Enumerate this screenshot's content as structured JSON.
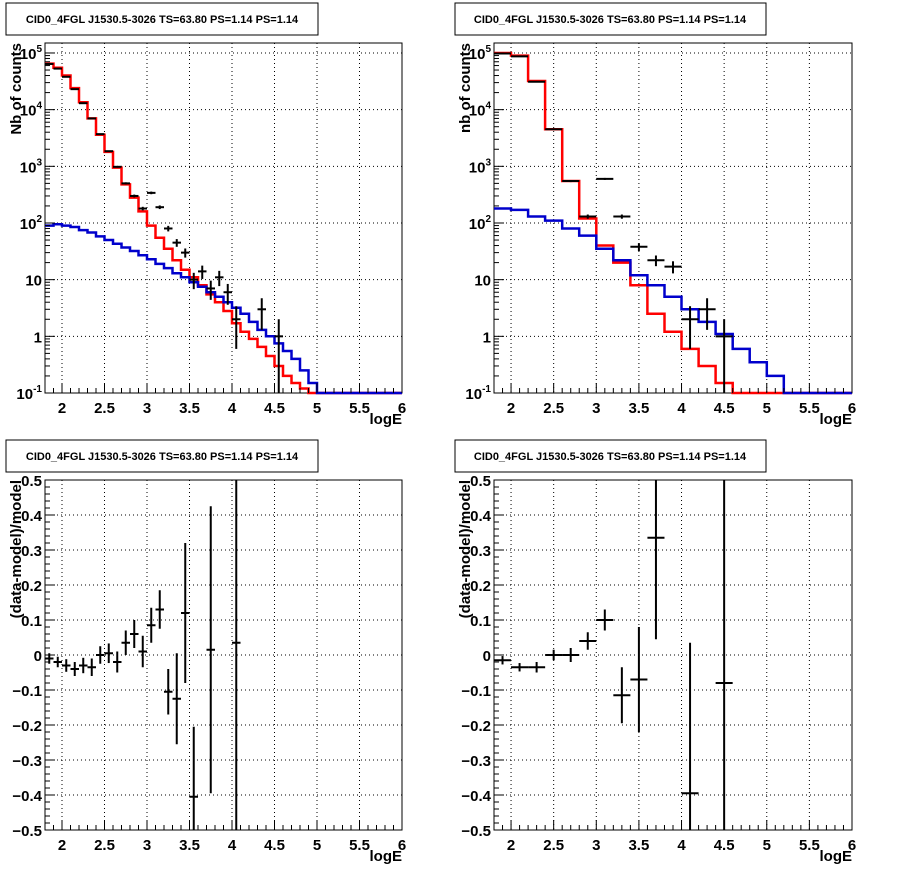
{
  "chart_data": [
    {
      "type": "line",
      "title": "CID0_4FGL J1530.5-3026 TS=63.80 PS=1.14 PS=1.14",
      "xlabel": "logE",
      "ylabel": "Nb of counts",
      "yscale": "log",
      "xlim": [
        1.8,
        6.0
      ],
      "ylim": [
        0.1,
        150000
      ],
      "xticks": [
        "2",
        "2.5",
        "3",
        "3.5",
        "4",
        "4.5",
        "5",
        "5.5",
        "6"
      ],
      "yticks": [
        "10^{-1}",
        "1",
        "10",
        "10^{2}",
        "10^{3}",
        "10^{4}",
        "10^{5}"
      ],
      "grid": true,
      "bin_width": 0.1,
      "series": [
        {
          "color": "#ff0000",
          "kind": "step",
          "x_start": 1.8,
          "values": [
            65000,
            55000,
            40000,
            24000,
            13500,
            7000,
            3600,
            1800,
            950,
            480,
            280,
            160,
            90,
            55,
            35,
            22,
            15,
            11,
            8,
            5.5,
            4,
            2.8,
            1.7,
            1.2,
            0.9,
            0.65,
            0.45,
            0.3,
            0.2,
            0.15,
            0.12,
            0.1,
            0.1,
            0.1,
            0.1,
            0.1,
            0.1,
            0.1,
            0.1,
            0.1,
            0.1,
            0.1
          ]
        },
        {
          "color": "#0000cc",
          "kind": "step",
          "x_start": 1.8,
          "values": [
            90,
            95,
            90,
            85,
            75,
            68,
            58,
            50,
            43,
            37,
            32,
            27,
            23,
            19,
            16,
            13,
            11,
            9,
            7.5,
            6,
            5,
            4,
            3.2,
            2.5,
            1.8,
            1.3,
            1.0,
            0.75,
            0.55,
            0.4,
            0.25,
            0.15,
            0.1,
            0.1,
            0.1,
            0.1,
            0.1,
            0.1,
            0.1,
            0.1,
            0.1,
            0.1
          ]
        },
        {
          "color": "#000000",
          "kind": "points",
          "x": [
            1.85,
            1.95,
            2.05,
            2.15,
            2.25,
            2.35,
            2.45,
            2.55,
            2.65,
            2.75,
            2.85,
            2.95,
            3.05,
            3.15,
            3.25,
            3.35,
            3.45,
            3.55,
            3.65,
            3.75,
            3.85,
            3.95,
            4.05,
            4.35,
            4.55
          ],
          "y": [
            64000,
            53000,
            38000,
            23000,
            13000,
            7000,
            3700,
            1850,
            980,
            500,
            300,
            180,
            340,
            190,
            80,
            45,
            30,
            10,
            14,
            7,
            11,
            6,
            2,
            3,
            1
          ],
          "yerr": [
            250,
            230,
            195,
            150,
            115,
            85,
            60,
            43,
            31,
            22,
            17,
            13,
            18,
            14,
            9,
            7,
            5.5,
            3.2,
            3.7,
            2.6,
            3.3,
            2.4,
            1.4,
            1.7,
            1
          ]
        }
      ]
    },
    {
      "type": "line",
      "title": "CID0_4FGL J1530.5-3026 TS=63.80 PS=1.14 PS=1.14",
      "xlabel": "logE",
      "ylabel": "nb of counts",
      "yscale": "log",
      "xlim": [
        1.8,
        6.0
      ],
      "ylim": [
        0.1,
        150000
      ],
      "xticks": [
        "2",
        "2.5",
        "3",
        "3.5",
        "4",
        "4.5",
        "5",
        "5.5",
        "6"
      ],
      "yticks": [
        "10^{-1}",
        "1",
        "10",
        "10^{2}",
        "10^{3}",
        "10^{4}",
        "10^{5}"
      ],
      "grid": true,
      "bin_width": 0.2,
      "series": [
        {
          "color": "#ff0000",
          "kind": "step",
          "x_start": 1.8,
          "values": [
            100000,
            90000,
            32000,
            4500,
            550,
            120,
            40,
            20,
            8,
            2.5,
            1.2,
            0.6,
            0.3,
            0.15,
            0.1,
            0.1,
            0.1,
            0.1,
            0.1,
            0.1,
            0.1
          ]
        },
        {
          "color": "#0000cc",
          "kind": "step",
          "x_start": 1.8,
          "values": [
            180,
            170,
            130,
            110,
            80,
            60,
            35,
            22,
            12,
            8,
            5,
            3,
            1.8,
            1.1,
            0.6,
            0.35,
            0.2,
            0.1,
            0.1,
            0.1,
            0.1
          ]
        },
        {
          "color": "#000000",
          "kind": "points",
          "x": [
            1.9,
            2.1,
            2.3,
            2.5,
            2.7,
            2.9,
            3.1,
            3.3,
            3.5,
            3.7,
            3.9,
            4.1,
            4.3,
            4.5
          ],
          "y": [
            98000,
            87000,
            31000,
            4500,
            550,
            130,
            600,
            130,
            38,
            22,
            17,
            2,
            3,
            1
          ],
          "yerr": [
            310,
            295,
            175,
            67,
            23,
            11,
            24,
            11,
            6,
            4.7,
            4.1,
            1.4,
            1.7,
            1
          ]
        }
      ]
    },
    {
      "type": "scatter",
      "title": "CID0_4FGL J1530.5-3026 TS=63.80 PS=1.14 PS=1.14",
      "xlabel": "logE",
      "ylabel": "(data-model)/model",
      "xlim": [
        1.8,
        6.0
      ],
      "ylim": [
        -0.5,
        0.5
      ],
      "xticks": [
        "2",
        "2.5",
        "3",
        "3.5",
        "4",
        "4.5",
        "5",
        "5.5",
        "6"
      ],
      "yticks": [
        "-0.5",
        "-0.4",
        "-0.3",
        "-0.2",
        "-0.1",
        "0",
        "0.1",
        "0.2",
        "0.3",
        "0.4",
        "0.5"
      ],
      "grid": true,
      "x_halfwidth": 0.05,
      "series": [
        {
          "color": "#000000",
          "x": [
            1.85,
            1.95,
            2.05,
            2.15,
            2.25,
            2.35,
            2.45,
            2.55,
            2.65,
            2.75,
            2.85,
            2.95,
            3.05,
            3.15,
            3.25,
            3.35,
            3.45,
            3.55,
            3.75,
            4.05
          ],
          "y": [
            -0.01,
            -0.02,
            -0.03,
            -0.04,
            -0.03,
            -0.035,
            0.0,
            0.005,
            -0.02,
            0.035,
            0.06,
            0.01,
            0.085,
            0.13,
            -0.105,
            -0.125,
            0.12,
            -0.405,
            0.015,
            0.035
          ],
          "yerr": [
            0.015,
            0.015,
            0.018,
            0.02,
            0.022,
            0.025,
            0.025,
            0.028,
            0.03,
            0.035,
            0.04,
            0.045,
            0.05,
            0.055,
            0.065,
            0.13,
            0.2,
            0.2,
            0.41,
            0.6
          ]
        }
      ]
    },
    {
      "type": "scatter",
      "title": "CID0_4FGL J1530.5-3026 TS=63.80 PS=1.14 PS=1.14",
      "xlabel": "logE",
      "ylabel": "(data-model)/model",
      "xlim": [
        1.8,
        6.0
      ],
      "ylim": [
        -0.5,
        0.5
      ],
      "xticks": [
        "2",
        "2.5",
        "3",
        "3.5",
        "4",
        "4.5",
        "5",
        "5.5",
        "6"
      ],
      "yticks": [
        "-0.5",
        "-0.4",
        "-0.3",
        "-0.2",
        "-0.1",
        "0",
        "0.1",
        "0.2",
        "0.3",
        "0.4",
        "0.5"
      ],
      "grid": true,
      "x_halfwidth": 0.1,
      "series": [
        {
          "color": "#000000",
          "x": [
            1.9,
            2.1,
            2.3,
            2.5,
            2.7,
            2.9,
            3.1,
            3.3,
            3.5,
            3.7,
            4.1,
            4.5
          ],
          "y": [
            -0.015,
            -0.035,
            -0.035,
            0.0,
            0.0,
            0.04,
            0.1,
            -0.115,
            -0.07,
            0.335,
            -0.395,
            -0.08
          ],
          "yerr": [
            0.012,
            0.012,
            0.015,
            0.015,
            0.02,
            0.025,
            0.03,
            0.08,
            0.15,
            0.29,
            0.43,
            0.6
          ]
        }
      ]
    }
  ]
}
